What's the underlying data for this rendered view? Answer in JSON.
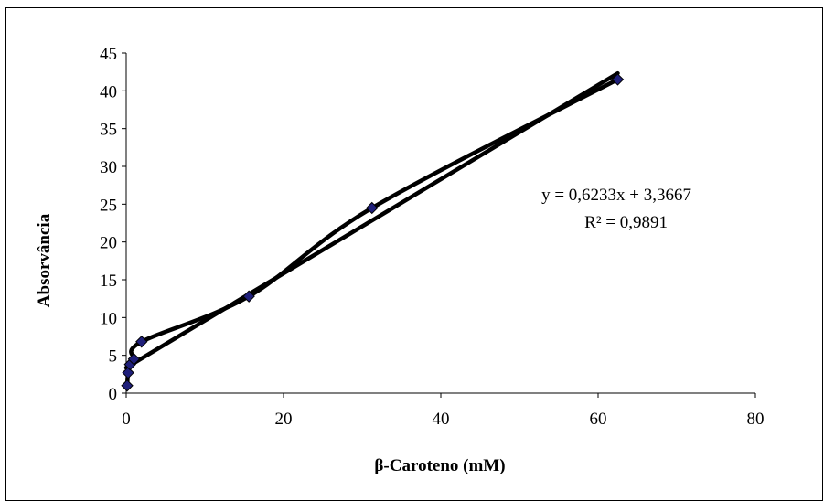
{
  "chart_data": {
    "type": "scatter",
    "title": "",
    "xlabel": "β-Caroteno (mM)",
    "ylabel": "Absorvância",
    "xlim": [
      0,
      80
    ],
    "ylim": [
      0,
      45
    ],
    "xticks": [
      0,
      20,
      40,
      60,
      80
    ],
    "yticks": [
      0,
      5,
      10,
      15,
      20,
      25,
      30,
      35,
      40,
      45
    ],
    "grid": false,
    "legend": "none",
    "series": [
      {
        "x": [
          0.12,
          0.24,
          0.49,
          0.98,
          1.95,
          15.6,
          31.25,
          62.5
        ],
        "y": [
          1.0,
          2.7,
          3.8,
          4.5,
          6.8,
          12.8,
          24.5,
          41.5
        ],
        "marker": "diamond",
        "marker_color": "#1f1f7a",
        "smooth_line_color": "#000000"
      }
    ],
    "trendline": {
      "type": "linear",
      "slope": 0.6233,
      "intercept": 3.3667,
      "x_range": [
        0,
        62.5
      ],
      "color": "#000000"
    },
    "annotations": {
      "equation": "y = 0,6233x + 3,3667",
      "r_squared": "R² = 0,9891"
    }
  }
}
